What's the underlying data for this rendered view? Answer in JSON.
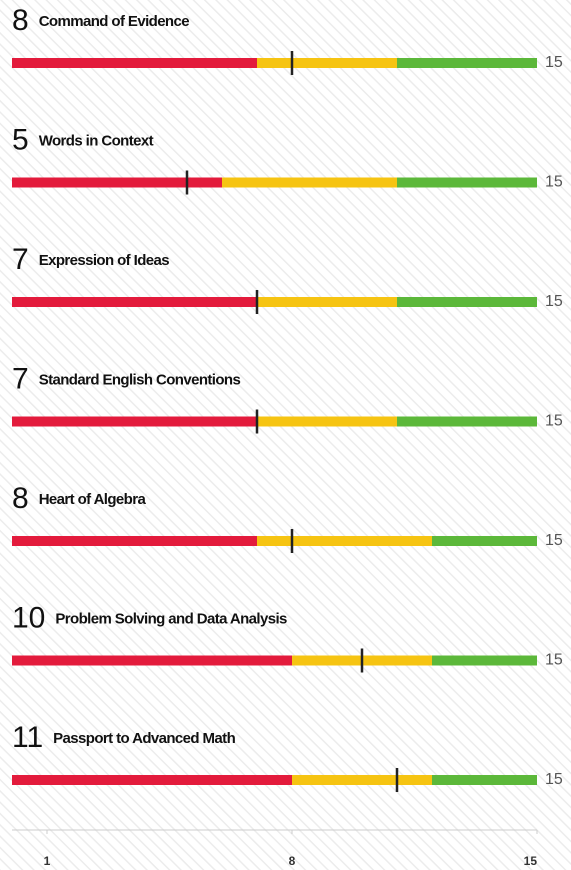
{
  "chart_data": {
    "type": "bullet",
    "categories": [
      "Command of Evidence",
      "Words in Context",
      "Expression of Ideas",
      "Standard English Conventions",
      "Heart of Algebra",
      "Problem Solving and Data Analysis",
      "Passport to Advanced Math"
    ],
    "values": [
      8,
      5,
      7,
      7,
      8,
      10,
      11
    ],
    "ranges": [
      [
        7,
        11
      ],
      [
        6,
        11
      ],
      [
        7,
        11
      ],
      [
        7,
        11
      ],
      [
        7,
        12
      ],
      [
        8,
        12
      ],
      [
        8,
        12
      ]
    ],
    "band_colors": [
      "#e31b3c",
      "#f6c412",
      "#5cb83a"
    ],
    "marker_color": "#222",
    "xlim": [
      0,
      15
    ],
    "xticks": [
      1,
      8,
      15
    ]
  }
}
